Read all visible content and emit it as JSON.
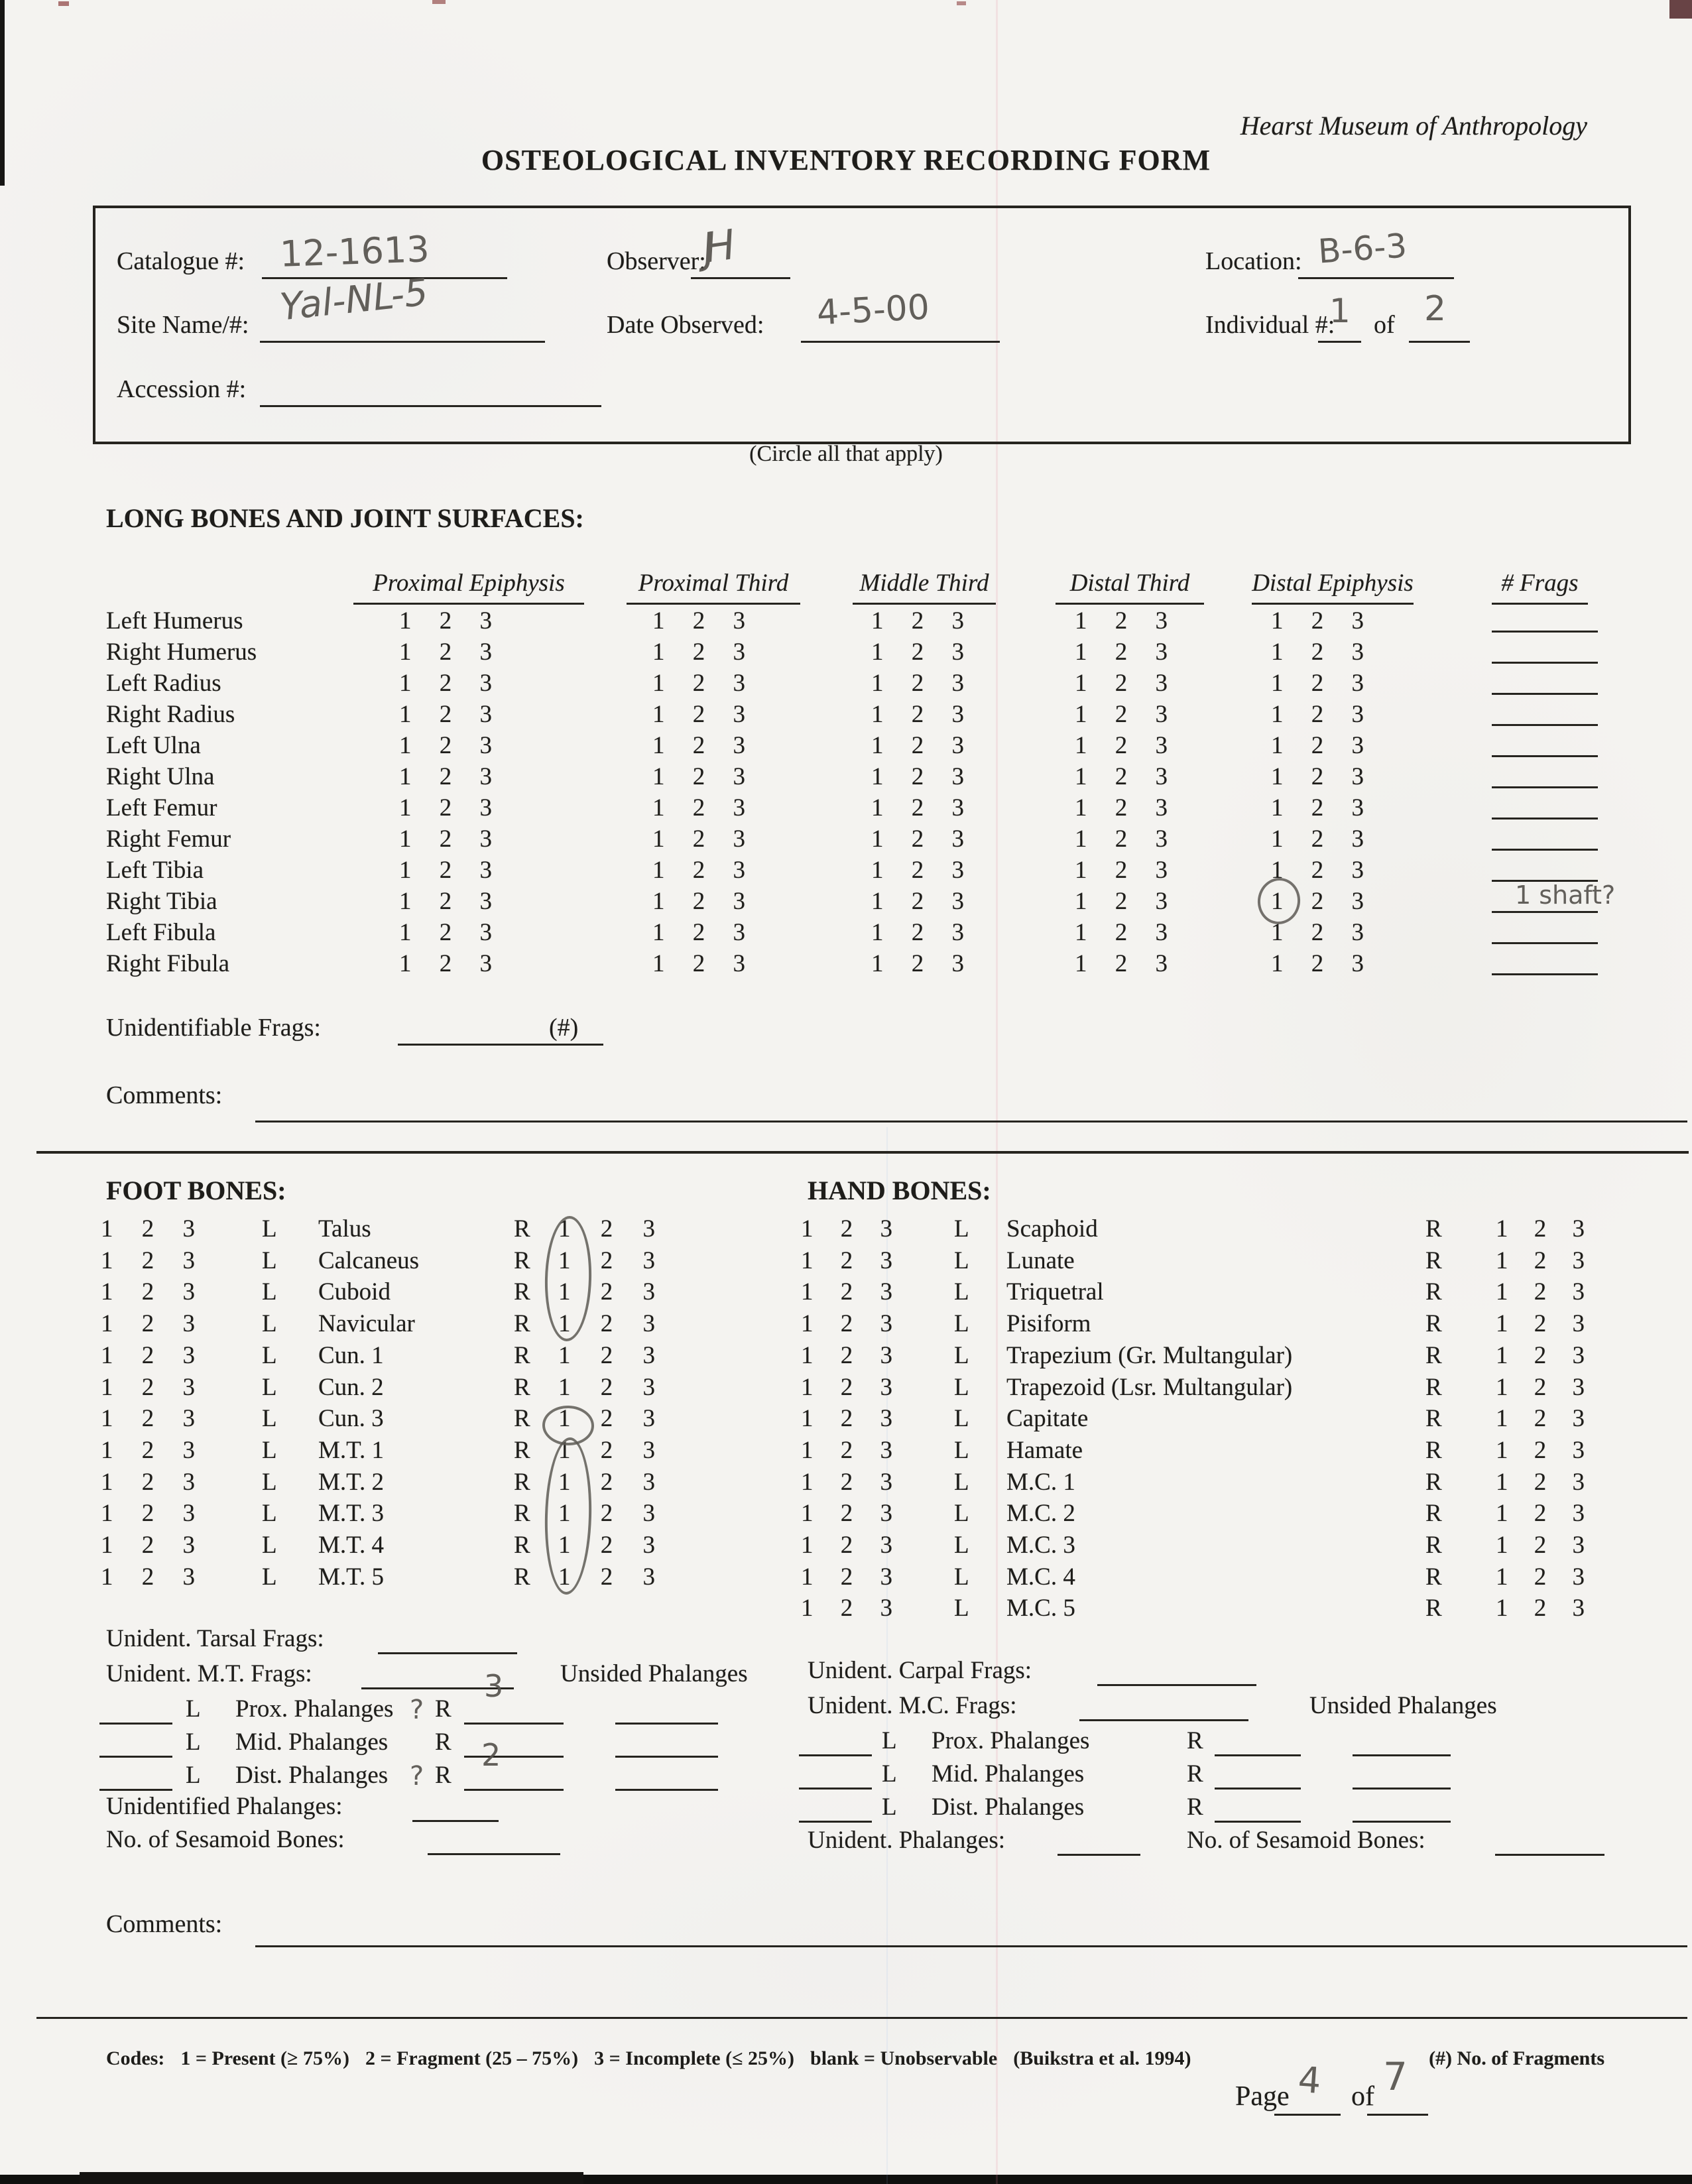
{
  "header": {
    "museum": "Hearst Museum of Anthropology",
    "title": "OSTEOLOGICAL INVENTORY RECORDING FORM",
    "circle_note": "(Circle all that apply)"
  },
  "info": {
    "catalogue_label": "Catalogue #:",
    "catalogue_value": "12-1613",
    "observer_label": "Observer:",
    "observer_value": "JH",
    "location_label": "Location:",
    "location_value": "B-6-3",
    "site_label": "Site Name/#:",
    "site_value": "Yal-NL-5",
    "date_label": "Date Observed:",
    "date_value": "4-5-00",
    "individual_label": "Individual #:",
    "individual_value": "1",
    "of_label": "of",
    "individual_total": "2",
    "accession_label": "Accession #:"
  },
  "long_bones": {
    "title": "LONG BONES AND JOINT SURFACES:",
    "columns": [
      "Proximal Epiphysis",
      "Proximal Third",
      "Middle Third",
      "Distal Third",
      "Distal Epiphysis",
      "# Frags"
    ],
    "codes": [
      "1",
      "2",
      "3"
    ],
    "rows": [
      {
        "name": "Left Humerus"
      },
      {
        "name": "Right Humerus"
      },
      {
        "name": "Left Radius"
      },
      {
        "name": "Right Radius"
      },
      {
        "name": "Left Ulna"
      },
      {
        "name": "Right Ulna"
      },
      {
        "name": "Left Femur"
      },
      {
        "name": "Right Femur"
      },
      {
        "name": "Left Tibia"
      },
      {
        "name": "Right Tibia"
      },
      {
        "name": "Left Fibula"
      },
      {
        "name": "Right Fibula"
      }
    ],
    "annotations": {
      "circled_row_index": 9,
      "circled_column": "Distal Epiphysis",
      "circled_code": "1",
      "frags_note_row_index": 9,
      "frags_note": "1  shaft?"
    },
    "unident_label": "Unidentifiable Frags:",
    "unident_suffix": "(#)",
    "comments_label": "Comments:"
  },
  "foot_bones": {
    "title": "FOOT BONES:",
    "side_left": "L",
    "side_right": "R",
    "names": [
      "Talus",
      "Calcaneus",
      "Cuboid",
      "Navicular",
      "Cun. 1",
      "Cun. 2",
      "Cun. 3",
      "M.T. 1",
      "M.T. 2",
      "M.T. 3",
      "M.T. 4",
      "M.T. 5"
    ],
    "annotations": [
      {
        "shape": "ellipse",
        "side": "R",
        "code": "1",
        "from_row": 0,
        "to_row": 3
      },
      {
        "shape": "circle",
        "side": "R",
        "code": "1",
        "from_row": 6,
        "to_row": 6
      },
      {
        "shape": "ellipse",
        "side": "R",
        "code": "1",
        "from_row": 7,
        "to_row": 11
      }
    ]
  },
  "hand_bones": {
    "title": "HAND BONES:",
    "side_left": "L",
    "side_right": "R",
    "names": [
      "Scaphoid",
      "Lunate",
      "Triquetral",
      "Pisiform",
      "Trapezium (Gr. Multangular)",
      "Trapezoid (Lsr. Multangular)",
      "Capitate",
      "Hamate",
      "M.C. 1",
      "M.C. 2",
      "M.C. 3",
      "M.C. 4",
      "M.C. 5"
    ]
  },
  "foot_summary": {
    "tarsal_label": "Unident. Tarsal Frags:",
    "mt_label": "Unident. M.T. Frags:",
    "unsided_label": "Unsided Phalanges",
    "l_label": "L",
    "r_label": "R",
    "prox_label": "Prox. Phalanges",
    "mid_label": "Mid. Phalanges",
    "dist_label": "Dist. Phalanges",
    "prox_q_mark": "?",
    "dist_q_mark": "?",
    "prox_r_value": "3",
    "dist_r_value": "2",
    "unidentified_label": "Unidentified Phalanges:",
    "sesamoid_label": "No. of Sesamoid Bones:"
  },
  "hand_summary": {
    "carpal_label": "Unident. Carpal Frags:",
    "mc_label": "Unident. M.C. Frags:",
    "unsided_label": "Unsided Phalanges",
    "l_label": "L",
    "r_label": "R",
    "prox_label": "Prox. Phalanges",
    "mid_label": "Mid. Phalanges",
    "dist_label": "Dist. Phalanges",
    "unident_label": "Unident. Phalanges:",
    "sesamoid_label": "No. of Sesamoid Bones:"
  },
  "footer": {
    "comments_label": "Comments:",
    "codes_label": "Codes:",
    "codes_parts": [
      "1 = Present (≥ 75%)",
      "2 = Fragment (25 – 75%)",
      "3 = Incomplete (≤ 25%)",
      "blank = Unobservable",
      "(Buikstra et al. 1994)"
    ],
    "frags_note": "(#) No. of Fragments",
    "page_label": "Page",
    "page_value": "4",
    "of_label": "of",
    "page_total": "7"
  }
}
